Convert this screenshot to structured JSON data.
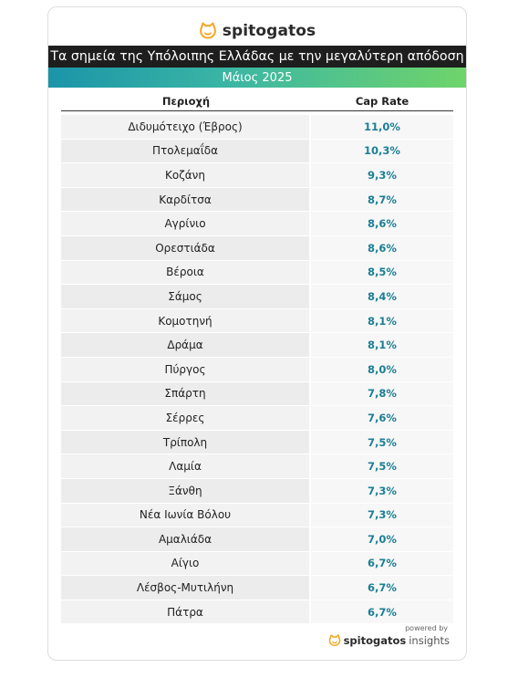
{
  "brand": {
    "name": "spitogatos",
    "logo_icon": "cat-head-icon",
    "accent": "#f5a623"
  },
  "header": {
    "title": "Τα σημεία της Υπόλοιπης Ελλάδας με την μεγαλύτερη απόδοση",
    "subtitle": "Μάιος 2025"
  },
  "table": {
    "col_area": "Περιοχή",
    "col_rate": "Cap Rate",
    "rows": [
      {
        "area": "Διδυμότειχο (Έβρος)",
        "rate": "11,0%"
      },
      {
        "area": "Πτολεμαΐδα",
        "rate": "10,3%"
      },
      {
        "area": "Κοζάνη",
        "rate": "9,3%"
      },
      {
        "area": "Καρδίτσα",
        "rate": "8,7%"
      },
      {
        "area": "Αγρίνιο",
        "rate": "8,6%"
      },
      {
        "area": "Ορεστιάδα",
        "rate": "8,6%"
      },
      {
        "area": "Βέροια",
        "rate": "8,5%"
      },
      {
        "area": "Σάμος",
        "rate": "8,4%"
      },
      {
        "area": "Κομοτηνή",
        "rate": "8,1%"
      },
      {
        "area": "Δράμα",
        "rate": "8,1%"
      },
      {
        "area": "Πύργος",
        "rate": "8,0%"
      },
      {
        "area": "Σπάρτη",
        "rate": "7,8%"
      },
      {
        "area": "Σέρρες",
        "rate": "7,6%"
      },
      {
        "area": "Τρίπολη",
        "rate": "7,5%"
      },
      {
        "area": "Λαμία",
        "rate": "7,5%"
      },
      {
        "area": "Ξάνθη",
        "rate": "7,3%"
      },
      {
        "area": "Νέα Ιωνία Βόλου",
        "rate": "7,3%"
      },
      {
        "area": "Αμαλιάδα",
        "rate": "7,0%"
      },
      {
        "area": "Αίγιο",
        "rate": "6,7%"
      },
      {
        "area": "Λέσβος-Μυτιλήνη",
        "rate": "6,7%"
      },
      {
        "area": "Πάτρα",
        "rate": "6,7%"
      }
    ]
  },
  "footer": {
    "powered_by": "powered by",
    "brand_name": "spitogatos",
    "brand_suffix": "insights"
  }
}
